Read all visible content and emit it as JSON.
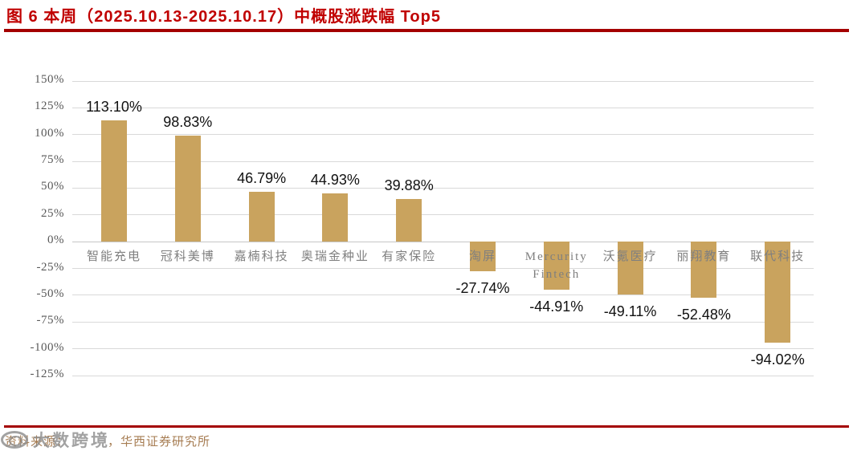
{
  "header": {
    "title": "图 6  本周（2025.10.13-2025.10.17）中概股涨跌幅 Top5"
  },
  "footer": {
    "source_label": "资料来源：",
    "source_suffix": "，华西证券研究所",
    "watermark_text": "大数跨境"
  },
  "colors": {
    "title_red": "#C00000",
    "rule_red": "#A40000",
    "bar_fill": "#C9A35E",
    "gridline": "#D9D9D9",
    "tick_text": "#595959",
    "category_text": "#7F7F7F",
    "value_text": "#111111",
    "footer_text": "#A67C52",
    "watermark_gray": "#8C8C8C"
  },
  "chart_data": {
    "type": "bar",
    "title": "本周（2025.10.13-2025.10.17）中概股涨跌幅 Top5",
    "categories": [
      "智能充电",
      "冠科美博",
      "嘉楠科技",
      "奥瑞金种业",
      "有家保险",
      "淘屏",
      "Mercurity Fintech",
      "沃氪医疗",
      "丽翔教育",
      "联代科技"
    ],
    "values": [
      113.1,
      98.83,
      46.79,
      44.93,
      39.88,
      -27.74,
      -44.91,
      -49.11,
      -52.48,
      -94.02
    ],
    "value_labels": [
      "113.10%",
      "98.83%",
      "46.79%",
      "44.93%",
      "39.88%",
      "-27.74%",
      "-44.91%",
      "-49.11%",
      "-52.48%",
      "-94.02%"
    ],
    "xlabel": "",
    "ylabel": "",
    "ylim": [
      -125,
      150
    ],
    "yticks": [
      150,
      125,
      100,
      75,
      50,
      25,
      0,
      -25,
      -50,
      -75,
      -100,
      -125
    ],
    "ytick_labels": [
      "150%",
      "125%",
      "100%",
      "75%",
      "50%",
      "25%",
      "0%",
      "-25%",
      "-50%",
      "-75%",
      "-100%",
      "-125%"
    ],
    "grid": true,
    "legend": false,
    "bar_color": "#C9A35E"
  }
}
